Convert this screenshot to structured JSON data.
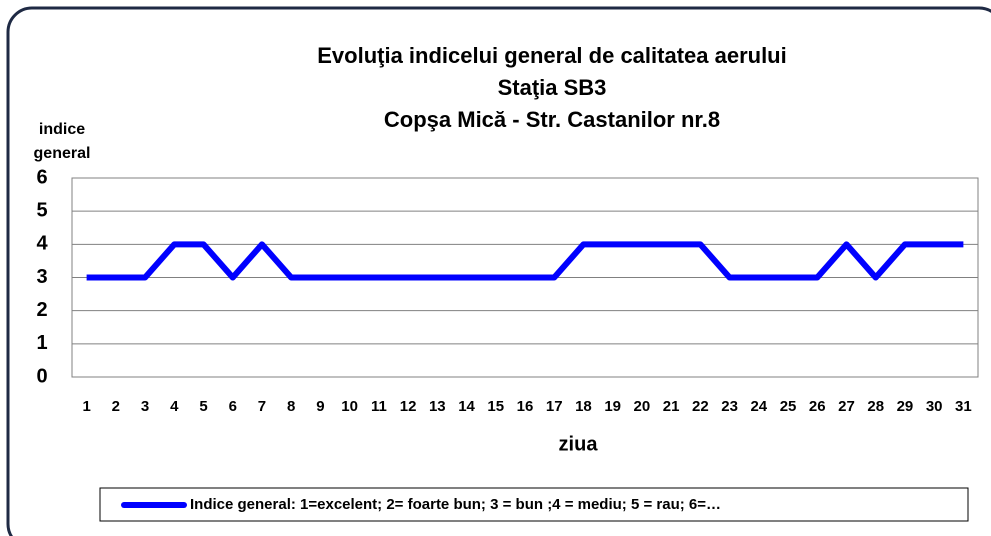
{
  "chart_data": {
    "type": "line",
    "title": [
      "Evoluţia  indicelui general de calitatea aerului",
      "Staţia SB3",
      "Copşa Mică - Str. Castanilor nr.8"
    ],
    "y_label": [
      "indice",
      "general"
    ],
    "x_label": "ziua",
    "categories": [
      "1",
      "2",
      "3",
      "4",
      "5",
      "6",
      "7",
      "8",
      "9",
      "10",
      "11",
      "12",
      "13",
      "14",
      "15",
      "16",
      "17",
      "18",
      "19",
      "20",
      "21",
      "22",
      "23",
      "24",
      "25",
      "26",
      "27",
      "28",
      "29",
      "30",
      "31"
    ],
    "series": [
      {
        "name": "Indice general: 1=excelent; 2= foarte bun; 3 = bun ;4 = mediu; 5 = rau; 6=…",
        "color": "#0000ff",
        "values": [
          3,
          3,
          3,
          4,
          4,
          3,
          4,
          3,
          3,
          3,
          3,
          3,
          3,
          3,
          3,
          3,
          3,
          4,
          4,
          4,
          4,
          4,
          3,
          3,
          3,
          3,
          4,
          3,
          4,
          4,
          4
        ]
      }
    ],
    "ylim": [
      0,
      6
    ],
    "yticks": [
      0,
      1,
      2,
      3,
      4,
      5,
      6
    ],
    "grid": true,
    "legend": "bottom"
  }
}
